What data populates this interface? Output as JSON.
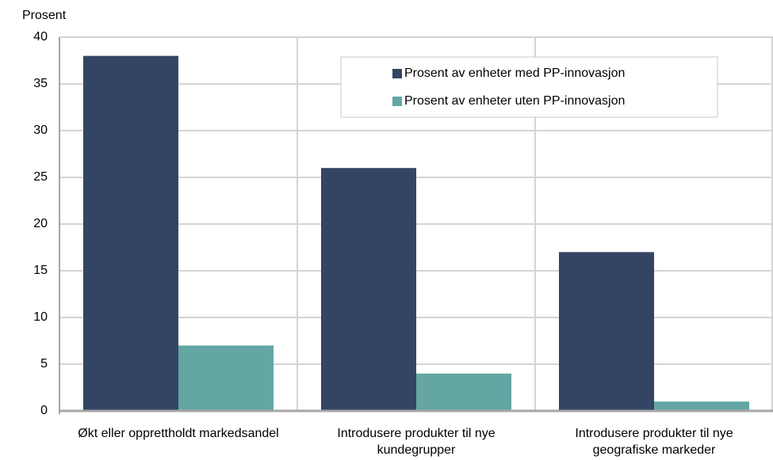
{
  "chart_data": {
    "type": "bar",
    "y_label": "Prosent",
    "categories": [
      "Økt eller opprettholdt markedsandel",
      "Introdusere produkter til nye kundegrupper",
      "Introdusere produkter til nye geografiske markeder"
    ],
    "series": [
      {
        "name": "Prosent av enheter med PP-innovasjon",
        "color": "#344464",
        "values": [
          38,
          26,
          17
        ]
      },
      {
        "name": "Prosent av enheter uten PP-innovasjon",
        "color": "#64a6a3",
        "values": [
          7,
          4,
          1
        ]
      }
    ],
    "ylim": [
      0,
      40
    ],
    "yticks": [
      0,
      5,
      10,
      15,
      20,
      25,
      30,
      35,
      40
    ],
    "grid": true,
    "legend": "upper right"
  }
}
